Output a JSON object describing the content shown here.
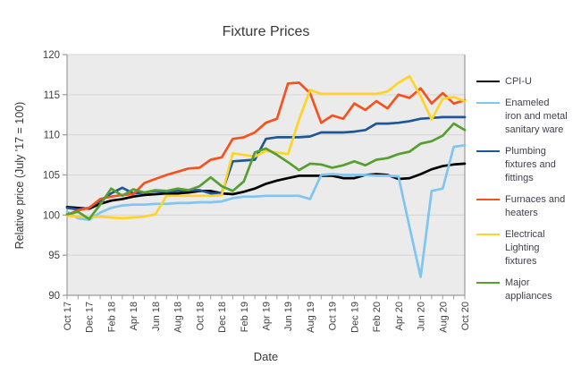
{
  "title": "Fixture Prices",
  "axes": {
    "x_title": "Date",
    "y_title": "Relative price (July '17 = 100)"
  },
  "colors": {
    "plot_background": "#EBEBEB",
    "gridline": "#D6D6D6",
    "axis_line": "#9B9B9B",
    "tick_label": "#3F3F3F",
    "legend_text": "#3E3E4E"
  },
  "chart_data": {
    "type": "line",
    "title": "Fixture Prices",
    "xlabel": "Date",
    "ylabel": "Relative price (July '17 = 100)",
    "ylim": [
      90,
      120
    ],
    "y_ticks": [
      90,
      95,
      100,
      105,
      110,
      115,
      120
    ],
    "grid": "horizontal",
    "legend_position": "right",
    "plot_bg": "#EBEBEB",
    "x": [
      "Oct 17",
      "Nov 17",
      "Dec 17",
      "Jan 18",
      "Feb 18",
      "Mar 18",
      "Apr 18",
      "May 18",
      "Jun 18",
      "Jul 18",
      "Aug 18",
      "Sep 18",
      "Oct 18",
      "Nov 18",
      "Dec 18",
      "Jan 19",
      "Feb 19",
      "Mar 19",
      "Apr 19",
      "May 19",
      "Jun 19",
      "Jul 19",
      "Aug 19",
      "Sep 19",
      "Oct 19",
      "Nov 19",
      "Dec 19",
      "Jan 20",
      "Feb 20",
      "Mar 20",
      "Apr 20",
      "May 20",
      "Jun 20",
      "Jul 20",
      "Aug 20",
      "Sep 20",
      "Oct 20"
    ],
    "x_tick_labels": [
      "Oct 17",
      "Dec 17",
      "Feb 18",
      "Apr 18",
      "Jun 18",
      "Aug 18",
      "Oct 18",
      "Dec 18",
      "Feb 19",
      "Apr 19",
      "Jun 19",
      "Aug 19",
      "Oct 19",
      "Dec 19",
      "Feb 20",
      "Apr 20",
      "Jun 20",
      "Aug 20",
      "Oct 20"
    ],
    "x_tick_step": 2,
    "series": [
      {
        "name": "CPI-U",
        "color": "#010101",
        "values": [
          101.0,
          100.9,
          100.8,
          101.4,
          101.8,
          102.0,
          102.3,
          102.5,
          102.6,
          102.7,
          102.7,
          102.8,
          103.0,
          103.0,
          102.7,
          102.6,
          102.9,
          103.3,
          103.9,
          104.3,
          104.6,
          104.9,
          104.9,
          104.9,
          104.9,
          104.6,
          104.6,
          105.0,
          105.1,
          105.0,
          104.5,
          104.6,
          105.1,
          105.7,
          106.1,
          106.3,
          106.4
        ]
      },
      {
        "name": "Enameled iron and metal sanitary ware",
        "color": "#7FC5F0",
        "values": [
          100.4,
          99.6,
          99.4,
          100.3,
          100.9,
          101.2,
          101.3,
          101.3,
          101.4,
          101.4,
          101.5,
          101.5,
          101.6,
          101.6,
          101.7,
          102.1,
          102.3,
          102.3,
          102.4,
          102.4,
          102.4,
          102.4,
          102.0,
          105.0,
          105.1,
          105.0,
          105.0,
          105.0,
          104.9,
          104.9,
          104.8,
          98.5,
          92.3,
          103.0,
          103.3,
          108.5,
          108.7
        ]
      },
      {
        "name": "Plumbing fixtures and fittings",
        "color": "#1F5796",
        "values": [
          100.9,
          100.7,
          100.9,
          101.8,
          102.7,
          103.4,
          102.7,
          102.8,
          103.0,
          102.9,
          103.0,
          103.1,
          103.1,
          102.7,
          102.7,
          106.7,
          106.8,
          106.9,
          109.5,
          109.7,
          109.7,
          109.7,
          109.8,
          110.3,
          110.3,
          110.3,
          110.4,
          110.6,
          111.4,
          111.4,
          111.5,
          111.7,
          112.0,
          112.1,
          112.2,
          112.2,
          112.2
        ]
      },
      {
        "name": "Furnaces and heaters",
        "color": "#F5521D",
        "values": [
          100.0,
          100.6,
          100.9,
          102.0,
          102.3,
          102.5,
          102.6,
          104.0,
          104.5,
          105.0,
          105.4,
          105.8,
          105.9,
          106.9,
          107.2,
          109.5,
          109.7,
          110.3,
          111.5,
          112.0,
          116.4,
          116.5,
          115.2,
          111.5,
          112.4,
          112.0,
          113.9,
          113.1,
          114.2,
          113.3,
          115.0,
          114.6,
          115.8,
          113.9,
          115.2,
          113.9,
          114.3
        ]
      },
      {
        "name": "Electrical Lighting fixtures",
        "color": "#FFD328",
        "values": [
          99.9,
          99.8,
          99.7,
          99.8,
          99.7,
          99.6,
          99.7,
          99.8,
          100.1,
          102.4,
          102.4,
          102.4,
          102.4,
          102.4,
          102.5,
          107.7,
          107.5,
          107.3,
          108.0,
          107.8,
          107.6,
          111.9,
          115.6,
          115.1,
          115.1,
          115.1,
          115.1,
          115.1,
          115.1,
          115.4,
          116.5,
          117.3,
          114.8,
          111.9,
          114.5,
          114.7,
          114.2
        ]
      },
      {
        "name": "Major appliances",
        "color": "#55A02F",
        "values": [
          100.1,
          100.4,
          99.5,
          101.3,
          103.3,
          102.4,
          103.2,
          102.8,
          103.1,
          103.0,
          103.3,
          103.1,
          103.6,
          104.7,
          103.6,
          103.0,
          104.2,
          107.8,
          108.3,
          107.5,
          106.6,
          105.6,
          106.4,
          106.3,
          105.9,
          106.2,
          106.7,
          106.2,
          106.9,
          107.1,
          107.6,
          107.9,
          108.9,
          109.2,
          109.9,
          111.4,
          110.6
        ]
      }
    ]
  }
}
